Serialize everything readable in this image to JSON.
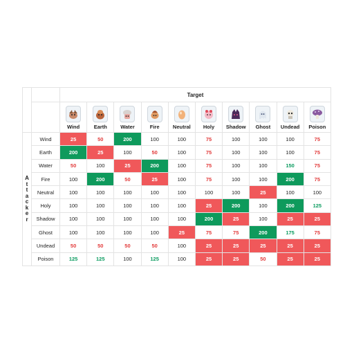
{
  "axis": {
    "target_label": "Target",
    "attacker_letters": [
      "A",
      "t",
      "t",
      "a",
      "c",
      "k",
      "e",
      "r"
    ]
  },
  "colors": {
    "strong_bg_green": "#0e9a5c",
    "weak_bg_red": "#f0585a",
    "text_green": "#0a9b5f",
    "text_red": "#e23b3b"
  },
  "columns": [
    {
      "label": "Wind",
      "icon": "wind-creature-icon"
    },
    {
      "label": "Earth",
      "icon": "earth-creature-icon"
    },
    {
      "label": "Water",
      "icon": "water-creature-icon"
    },
    {
      "label": "Fire",
      "icon": "fire-creature-icon"
    },
    {
      "label": "Neutral",
      "icon": "neutral-egg-icon"
    },
    {
      "label": "Holy",
      "icon": "holy-creature-icon"
    },
    {
      "label": "Shadow",
      "icon": "shadow-creature-icon"
    },
    {
      "label": "Ghost",
      "icon": "ghost-creature-icon"
    },
    {
      "label": "Undead",
      "icon": "undead-creature-icon"
    },
    {
      "label": "Poison",
      "icon": "poison-creature-icon"
    }
  ],
  "rows": [
    {
      "label": "Wind",
      "values": [
        25,
        50,
        200,
        100,
        100,
        75,
        100,
        100,
        100,
        75
      ]
    },
    {
      "label": "Earth",
      "values": [
        200,
        25,
        100,
        50,
        100,
        75,
        100,
        100,
        100,
        75
      ]
    },
    {
      "label": "Water",
      "values": [
        50,
        100,
        25,
        200,
        100,
        75,
        100,
        100,
        150,
        75
      ]
    },
    {
      "label": "Fire",
      "values": [
        100,
        200,
        50,
        25,
        100,
        75,
        100,
        100,
        200,
        75
      ]
    },
    {
      "label": "Neutral",
      "values": [
        100,
        100,
        100,
        100,
        100,
        100,
        100,
        25,
        100,
        100
      ]
    },
    {
      "label": "Holy",
      "values": [
        100,
        100,
        100,
        100,
        100,
        25,
        200,
        100,
        200,
        125
      ]
    },
    {
      "label": "Shadow",
      "values": [
        100,
        100,
        100,
        100,
        100,
        200,
        25,
        100,
        25,
        25
      ]
    },
    {
      "label": "Ghost",
      "values": [
        100,
        100,
        100,
        100,
        25,
        75,
        75,
        200,
        175,
        75
      ]
    },
    {
      "label": "Undead",
      "values": [
        50,
        50,
        50,
        50,
        100,
        25,
        25,
        25,
        25,
        25
      ]
    },
    {
      "label": "Poison",
      "values": [
        125,
        125,
        100,
        125,
        100,
        25,
        25,
        50,
        25,
        25
      ]
    }
  ],
  "cell_styles": {
    "note": "style codes per cell: n=neutral text, r=red text, g=green text, R=red background, G=green background",
    "grid": [
      [
        "R",
        "r",
        "G",
        "n",
        "n",
        "r",
        "n",
        "n",
        "n",
        "r"
      ],
      [
        "G",
        "R",
        "n",
        "r",
        "n",
        "r",
        "n",
        "n",
        "n",
        "r"
      ],
      [
        "r",
        "n",
        "R",
        "G",
        "n",
        "r",
        "n",
        "n",
        "g",
        "r"
      ],
      [
        "n",
        "G",
        "r",
        "R",
        "n",
        "r",
        "n",
        "n",
        "G",
        "r"
      ],
      [
        "n",
        "n",
        "n",
        "n",
        "n",
        "n",
        "n",
        "R",
        "n",
        "n"
      ],
      [
        "n",
        "n",
        "n",
        "n",
        "n",
        "R",
        "G",
        "n",
        "G",
        "g"
      ],
      [
        "n",
        "n",
        "n",
        "n",
        "n",
        "G",
        "R",
        "n",
        "R",
        "R"
      ],
      [
        "n",
        "n",
        "n",
        "n",
        "R",
        "r",
        "r",
        "G",
        "g",
        "r"
      ],
      [
        "r",
        "r",
        "r",
        "r",
        "n",
        "R",
        "R",
        "R",
        "R",
        "R"
      ],
      [
        "g",
        "g",
        "n",
        "g",
        "n",
        "R",
        "R",
        "r",
        "R",
        "R"
      ]
    ]
  }
}
